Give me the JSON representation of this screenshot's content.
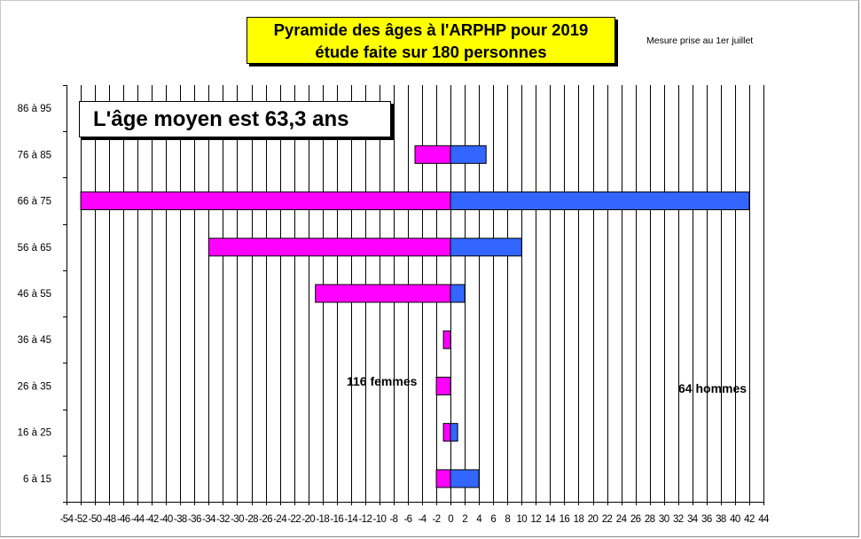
{
  "chart_data": {
    "type": "bar",
    "orientation": "horizontal",
    "title_lines": [
      "Pyramide des âges à l'ARPHP pour 2019",
      "étude faite sur 180 personnes"
    ],
    "note": "Mesure prise au   1er juillet",
    "average_label": "L'âge moyen est 63,3 ans",
    "annotations": {
      "women": "116 femmes",
      "men": "64 hommes"
    },
    "categories": [
      "6 à 15",
      "16 à 25",
      "26 à 35",
      "36 à 45",
      "46 à 55",
      "56 à 65",
      "66 à 75",
      "76 à 85",
      "86 à 95"
    ],
    "series": [
      {
        "name": "femmes",
        "color": "#ff00ff",
        "values": [
          -2,
          -1,
          -2,
          -1,
          -19,
          -34,
          -52,
          -5,
          0
        ]
      },
      {
        "name": "hommes",
        "color": "#3366ff",
        "values": [
          4,
          1,
          0,
          0,
          2,
          10,
          42,
          5,
          0
        ]
      }
    ],
    "xlim": [
      -54,
      44
    ],
    "x_ticks": [
      -54,
      -52,
      -50,
      -48,
      -46,
      -44,
      -42,
      -40,
      -38,
      -36,
      -34,
      -32,
      -30,
      -28,
      -26,
      -24,
      -22,
      -20,
      -18,
      -16,
      -14,
      -12,
      -10,
      -8,
      -6,
      -4,
      -2,
      0,
      2,
      4,
      6,
      8,
      10,
      12,
      14,
      16,
      18,
      20,
      22,
      24,
      26,
      28,
      30,
      32,
      34,
      36,
      38,
      40,
      42,
      44
    ],
    "grid": true
  }
}
